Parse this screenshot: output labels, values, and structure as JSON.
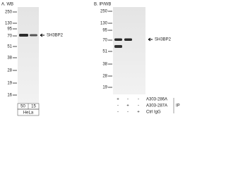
{
  "panel_a": {
    "label": "A. WB",
    "markers": [
      "250",
      "130",
      "95",
      "70",
      "51",
      "38",
      "28",
      "19",
      "16"
    ],
    "target": "SH3BP2",
    "lanes": [
      "50",
      "15"
    ],
    "sample": "HeLa"
  },
  "panel_b": {
    "label": "B. IP/WB",
    "markers": [
      "250",
      "130",
      "95",
      "70",
      "51",
      "38",
      "28",
      "19"
    ],
    "target": "SH3BP2",
    "rows": [
      {
        "marks": [
          "+",
          "-",
          "-"
        ],
        "antibody": "A303-286A"
      },
      {
        "marks": [
          "-",
          "+",
          "-"
        ],
        "antibody": "A303-287A"
      },
      {
        "marks": [
          "-",
          "-",
          "+"
        ],
        "antibody": "Ctrl IgG"
      }
    ],
    "ip": "IP"
  }
}
